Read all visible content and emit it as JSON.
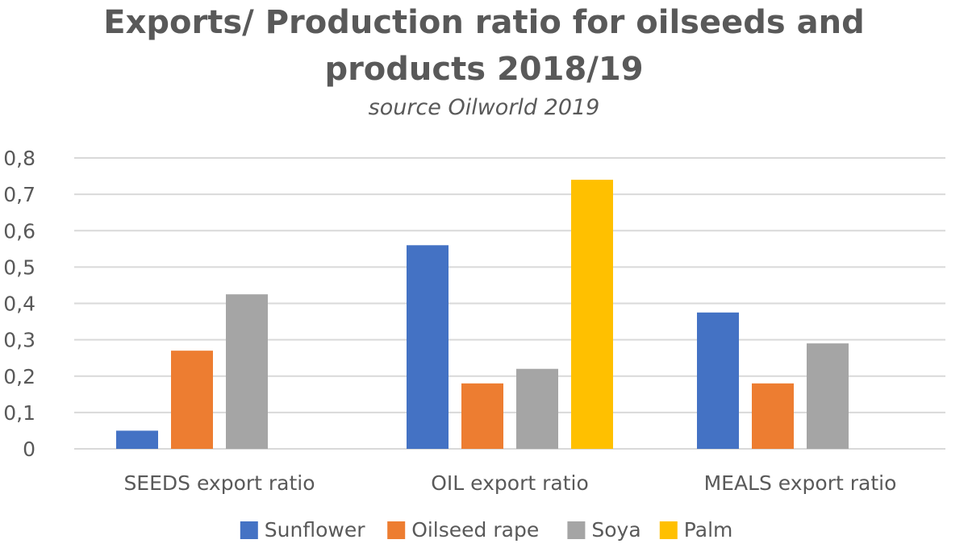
{
  "chart_data": {
    "type": "bar",
    "title_lines": [
      "Exports/ Production ratio for oilseeds and",
      "products 2018/19"
    ],
    "subtitle": "source Oilworld 2019",
    "categories": [
      "SEEDS export ratio",
      "OIL export ratio",
      "MEALS export ratio"
    ],
    "series": [
      {
        "name": "Sunflower",
        "color": "#4472C4",
        "values": [
          0.05,
          0.56,
          0.375
        ]
      },
      {
        "name": "Oilseed rape",
        "color": "#ED7D31",
        "values": [
          0.27,
          0.18,
          0.18
        ]
      },
      {
        "name": "Soya",
        "color": "#A5A5A5",
        "values": [
          0.425,
          0.22,
          0.29
        ]
      },
      {
        "name": "Palm",
        "color": "#FFC000",
        "values": [
          null,
          0.74,
          null
        ]
      }
    ],
    "ylim": [
      0,
      0.8
    ],
    "yticks": [
      "0",
      "0,1",
      "0,2",
      "0,3",
      "0,4",
      "0,5",
      "0,6",
      "0,7",
      "0,8"
    ],
    "grid": true,
    "legend_position": "bottom"
  }
}
